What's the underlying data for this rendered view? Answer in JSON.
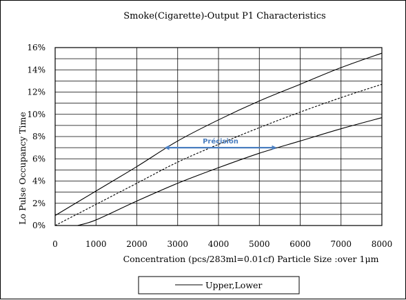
{
  "chart_data": {
    "type": "line",
    "title": "Smoke(Cigarette)-Output P1 Characteristics",
    "xlabel": "Concentration (pcs/283ml=0.01cf)  Particle Size :over 1μm",
    "ylabel": "Lo Pulse Occupancy Time",
    "xlim": [
      0,
      8000
    ],
    "ylim": [
      0,
      16
    ],
    "x_ticks": [
      0,
      1000,
      2000,
      3000,
      4000,
      5000,
      6000,
      7000,
      8000
    ],
    "x_tick_labels": [
      "0",
      "1000",
      "2000",
      "3000",
      "4000",
      "5000",
      "6000",
      "7000",
      "8000"
    ],
    "y_ticks": [
      0,
      2,
      4,
      6,
      8,
      10,
      12,
      14,
      16
    ],
    "y_tick_labels": [
      "0%",
      "2%",
      "4%",
      "6%",
      "8%",
      "10%",
      "12%",
      "14%",
      "16%"
    ],
    "grid": true,
    "legend": {
      "position": "bottom",
      "label": "Upper,Lower"
    },
    "series": [
      {
        "name": "Upper,Lower",
        "style": "solid",
        "x": [
          0,
          1000,
          2000,
          3000,
          4000,
          5000,
          6000,
          7000,
          8000
        ],
        "y": [
          0.9,
          3.1,
          5.3,
          7.6,
          9.5,
          11.2,
          12.7,
          14.2,
          15.5
        ]
      },
      {
        "style": "dashed",
        "x": [
          0,
          1000,
          2000,
          3000,
          4000,
          5000,
          6000,
          7000,
          8000
        ],
        "y": [
          0.0,
          1.9,
          3.8,
          5.7,
          7.3,
          8.8,
          10.2,
          11.5,
          12.7
        ]
      },
      {
        "style": "solid",
        "x": [
          550,
          1000,
          2000,
          3000,
          4000,
          5000,
          6000,
          7000,
          8000
        ],
        "y": [
          0.0,
          0.5,
          2.2,
          3.8,
          5.2,
          6.5,
          7.6,
          8.7,
          9.7
        ]
      }
    ],
    "annotation": {
      "text": "Précision",
      "color": "#4a7ec0",
      "x_from": 2700,
      "x_to": 5400,
      "y": 7.0
    }
  }
}
